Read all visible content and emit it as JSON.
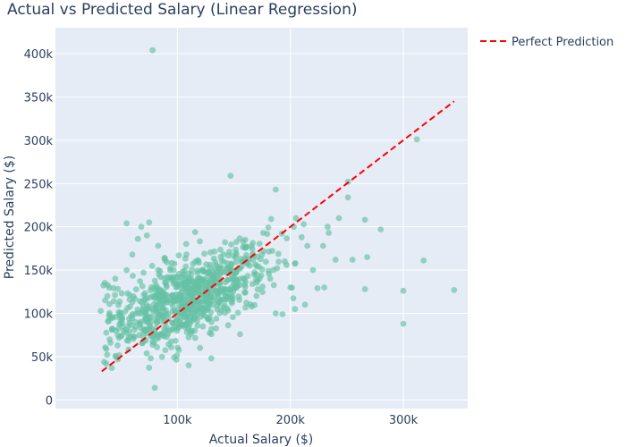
{
  "chart_data": {
    "type": "scatter",
    "title": "Actual vs Predicted Salary (Linear Regression)",
    "xlabel": "Actual Salary ($)",
    "ylabel": "Predicted Salary ($)",
    "xlim": [
      -8000,
      357000
    ],
    "ylim": [
      -10000,
      430000
    ],
    "x_ticks": [
      100000,
      200000,
      300000
    ],
    "x_tick_labels": [
      "100k",
      "200k",
      "300k"
    ],
    "y_ticks": [
      0,
      50000,
      100000,
      150000,
      200000,
      250000,
      300000,
      350000,
      400000
    ],
    "y_tick_labels": [
      "0",
      "50k",
      "100k",
      "150k",
      "200k",
      "250k",
      "300k",
      "350k",
      "400k"
    ],
    "grid": true,
    "legend_position": "top-right-outside",
    "colors": {
      "plot_bg": "#e5ecf6",
      "grid": "#ffffff",
      "points": "#66c2a5",
      "reference_line": "#ff0000",
      "text": "#2a3f5f"
    },
    "reference_line": {
      "name": "Perfect Prediction",
      "style": "dashed",
      "x": [
        33000,
        345000
      ],
      "y": [
        33000,
        345000
      ]
    },
    "series": [
      {
        "cluster": {
          "x_center": 110000,
          "y_center": 118000,
          "n": 820,
          "x_sd": 34000,
          "slope": 0.5,
          "intercept": 62000,
          "residual_sd": 23000
        },
        "points": [
          [
            78000,
            404000
          ],
          [
            147000,
            259000
          ],
          [
            312000,
            301000
          ],
          [
            251000,
            252000
          ],
          [
            187000,
            243000
          ],
          [
            251000,
            234000
          ],
          [
            80000,
            14000
          ],
          [
            130000,
            48000
          ],
          [
            345000,
            127000
          ],
          [
            300000,
            126000
          ],
          [
            300000,
            88000
          ],
          [
            318000,
            161000
          ],
          [
            280000,
            197000
          ],
          [
            266000,
            208000
          ],
          [
            230000,
            130000
          ],
          [
            266000,
            128000
          ],
          [
            243000,
            210000
          ],
          [
            268000,
            165000
          ],
          [
            255000,
            162000
          ],
          [
            229000,
            178000
          ],
          [
            55000,
            204000
          ],
          [
            68000,
            200000
          ],
          [
            75000,
            205000
          ],
          [
            65000,
            186000
          ],
          [
            60000,
            168000
          ],
          [
            83000,
            178000
          ],
          [
            97000,
            49000
          ],
          [
            37000,
            42000
          ],
          [
            205000,
            210000
          ],
          [
            203000,
            200000
          ],
          [
            183000,
            209000
          ],
          [
            160000,
            185000
          ],
          [
            195000,
            160000
          ],
          [
            176000,
            193000
          ],
          [
            210000,
            188000
          ],
          [
            233000,
            200000
          ],
          [
            234000,
            193000
          ],
          [
            215000,
            178000
          ],
          [
            240000,
            162000
          ],
          [
            220000,
            150000
          ],
          [
            200000,
            130000
          ],
          [
            193000,
            99000
          ],
          [
            204000,
            105000
          ],
          [
            213000,
            110000
          ],
          [
            187000,
            100000
          ],
          [
            170000,
            120000
          ],
          [
            224000,
            129000
          ],
          [
            36000,
            115000
          ],
          [
            40000,
            95000
          ],
          [
            38000,
            120000
          ],
          [
            45000,
            140000
          ],
          [
            55000,
            150000
          ],
          [
            73000,
            190000
          ],
          [
            83000,
            150000
          ],
          [
            120000,
            60000
          ],
          [
            110000,
            40000
          ]
        ]
      }
    ]
  }
}
